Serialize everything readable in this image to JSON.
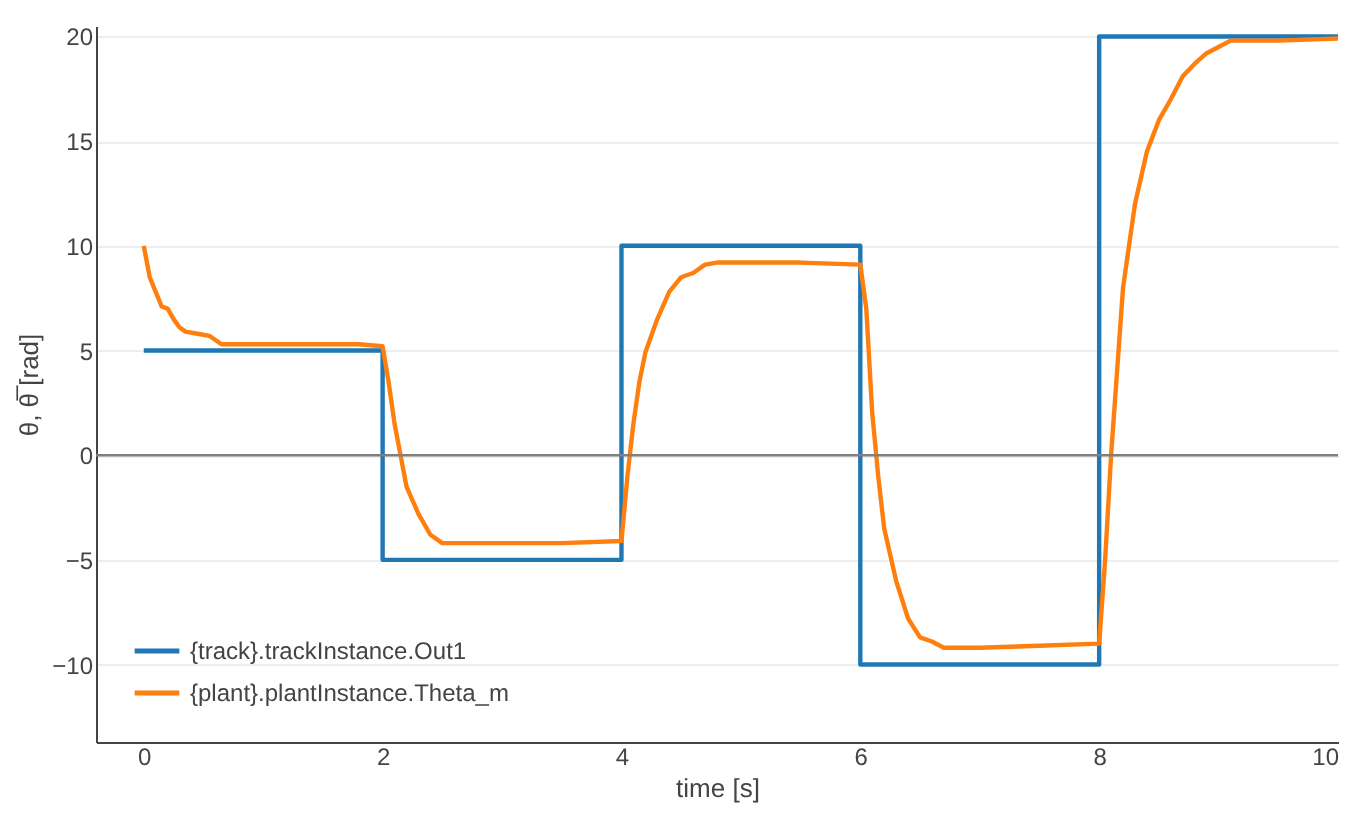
{
  "chart_data": {
    "type": "line",
    "xlabel": "time [s]",
    "ylabel": "θ, θ̅ [rad]",
    "xlim": [
      -0.4,
      10
    ],
    "xticks": [
      0,
      2,
      4,
      6,
      8,
      10
    ],
    "ylim": [
      -13.7,
      20.5
    ],
    "yticks": [
      -10,
      -5,
      0,
      5,
      10,
      15,
      20
    ],
    "grid": "y",
    "legend": "bottom left",
    "ref_lines": [
      {
        "axis": "y",
        "value": 0,
        "color": "#7f7f7f"
      }
    ],
    "series": [
      {
        "name": "{track}.trackInstance.Out1",
        "color": "#1f77b4",
        "x": [
          0,
          2,
          2,
          4,
          4,
          6,
          6,
          8,
          8,
          10
        ],
        "values": [
          5,
          5,
          -5,
          -5,
          10,
          10,
          -10,
          -10,
          20,
          20
        ]
      },
      {
        "name": "{plant}.plantInstance.Theta_m",
        "color": "#ff7f0e",
        "x": [
          0,
          0.05,
          0.1,
          0.15,
          0.2,
          0.25,
          0.3,
          0.35,
          0.45,
          0.55,
          0.6,
          0.65,
          1.0,
          1.5,
          1.8,
          2.0,
          2.05,
          2.1,
          2.15,
          2.2,
          2.3,
          2.4,
          2.5,
          3.0,
          3.5,
          4.0,
          4.05,
          4.1,
          4.15,
          4.2,
          4.3,
          4.4,
          4.5,
          4.6,
          4.7,
          4.8,
          5.5,
          6.0,
          6.05,
          6.1,
          6.15,
          6.2,
          6.3,
          6.4,
          6.5,
          6.6,
          6.7,
          7.0,
          7.5,
          8.0,
          8.05,
          8.1,
          8.15,
          8.2,
          8.3,
          8.4,
          8.5,
          8.6,
          8.7,
          8.8,
          8.9,
          9.0,
          9.1,
          9.5,
          10
        ],
        "values": [
          10,
          8.5,
          7.8,
          7.1,
          7.0,
          6.5,
          6.1,
          5.9,
          5.8,
          5.7,
          5.5,
          5.3,
          5.3,
          5.3,
          5.3,
          5.2,
          3.5,
          1.5,
          0,
          -1.5,
          -2.8,
          -3.8,
          -4.2,
          -4.2,
          -4.2,
          -4.1,
          -1,
          1.5,
          3.5,
          4.9,
          6.5,
          7.8,
          8.5,
          8.7,
          9.1,
          9.2,
          9.2,
          9.1,
          7,
          2,
          -1,
          -3.5,
          -6,
          -7.8,
          -8.7,
          -8.9,
          -9.2,
          -9.2,
          -9.1,
          -9.0,
          -5,
          0,
          4,
          8,
          12,
          14.5,
          16,
          17,
          18.1,
          18.7,
          19.2,
          19.5,
          19.8,
          19.8,
          19.9
        ]
      }
    ]
  }
}
